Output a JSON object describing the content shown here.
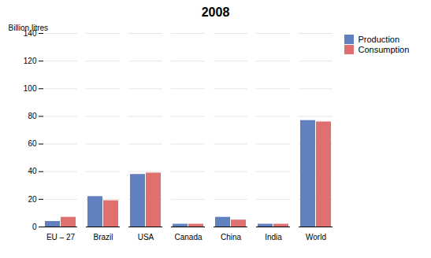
{
  "chart_data": {
    "type": "bar",
    "title": "2008",
    "ylabel": "Billion litres",
    "categories": [
      "EU – 27",
      "Brazil",
      "USA",
      "Canada",
      "China",
      "India",
      "World"
    ],
    "series": [
      {
        "name": "Production",
        "color": "#6080C0",
        "values": [
          4,
          22,
          38,
          2,
          7,
          2,
          77
        ]
      },
      {
        "name": "Consumption",
        "color": "#E07070",
        "values": [
          7,
          19,
          39,
          2,
          5,
          2,
          76
        ]
      }
    ],
    "ylim": [
      0,
      140
    ],
    "yticks": [
      0,
      20,
      40,
      60,
      80,
      100,
      120,
      140
    ],
    "grid": true,
    "legend": "right"
  }
}
